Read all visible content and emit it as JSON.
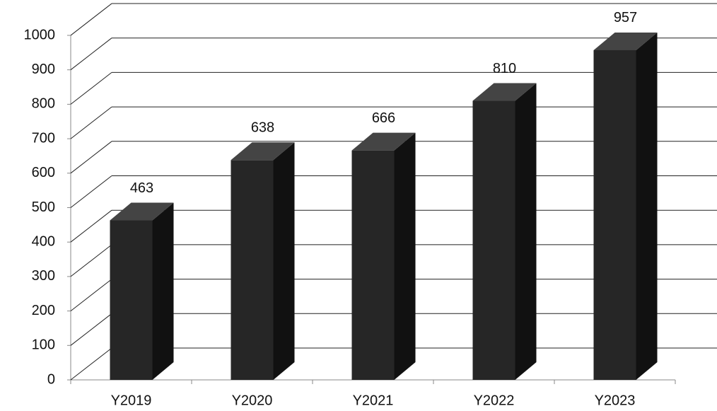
{
  "chart_data": {
    "type": "bar",
    "categories": [
      "Y2019",
      "Y2020",
      "Y2021",
      "Y2022",
      "Y2023"
    ],
    "values": [
      463,
      638,
      666,
      810,
      957
    ],
    "color": "#262626",
    "ylim": [
      0,
      1000
    ],
    "yticks": [
      0,
      100,
      200,
      300,
      400,
      500,
      600,
      700,
      800,
      900,
      1000
    ],
    "grid": true
  }
}
